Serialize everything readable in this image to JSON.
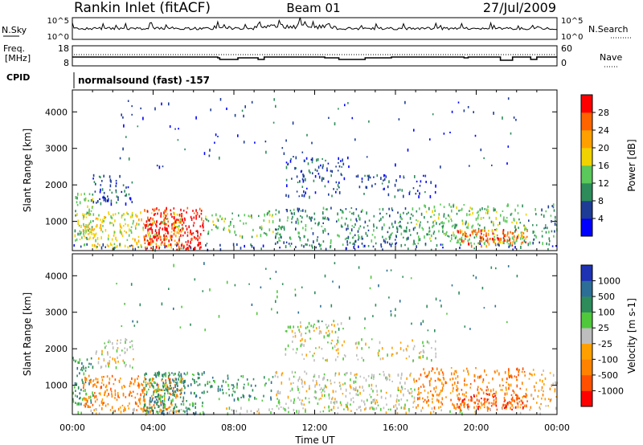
{
  "header": {
    "station": "Rankin Inlet (fitACF)",
    "beam": "Beam 01",
    "date": "27/Jul/2009"
  },
  "strip1": {
    "left_label": "N.Sky",
    "left_top": "10^5",
    "left_bottom": "10^0",
    "right_top": "10^5",
    "right_bottom": "10^0",
    "right_label": "N.Search"
  },
  "strip2": {
    "left_label_1": "Freq.",
    "left_label_2": "[MHz]",
    "left_top": "18",
    "left_bottom": "8",
    "right_top": "60",
    "right_bottom": "0",
    "right_label": "Nave"
  },
  "cpid": {
    "label": "CPID",
    "value": "normalsound (fast) -157"
  },
  "chart_data": [
    {
      "type": "heatmap",
      "panel": "power",
      "ylabel": "Slant Range [km]",
      "xlabel": "",
      "y_ticks": [
        "1000",
        "2000",
        "3000",
        "4000"
      ],
      "ylim": [
        200,
        4600
      ],
      "colorbar_label": "Power [dB]",
      "colorbar_ticks": [
        "4",
        "8",
        "12",
        "16",
        "20",
        "24",
        "28"
      ],
      "colors": [
        "#0000ff",
        "#1e3c96",
        "#2d8c5a",
        "#5ac85a",
        "#f0d200",
        "#ffa000",
        "#ff6400",
        "#ff0000"
      ]
    },
    {
      "type": "heatmap",
      "panel": "velocity",
      "ylabel": "Slant Range [km]",
      "xlabel": "Time UT",
      "y_ticks": [
        "1000",
        "2000",
        "3000",
        "4000"
      ],
      "ylim": [
        200,
        4600
      ],
      "x_ticks": [
        "00:00",
        "04:00",
        "08:00",
        "12:00",
        "16:00",
        "20:00",
        "00:00"
      ],
      "colorbar_label": "Velocity [m s-1]",
      "colorbar_ticks": [
        "1000",
        "500",
        "100",
        "25",
        "-25",
        "-100",
        "-500",
        "-1000"
      ],
      "colors": [
        "#1e32b4",
        "#2d6e96",
        "#2d8c5a",
        "#50c83c",
        "#bebebe",
        "#ffa000",
        "#ff8200",
        "#ff5000",
        "#ff0000"
      ]
    }
  ]
}
